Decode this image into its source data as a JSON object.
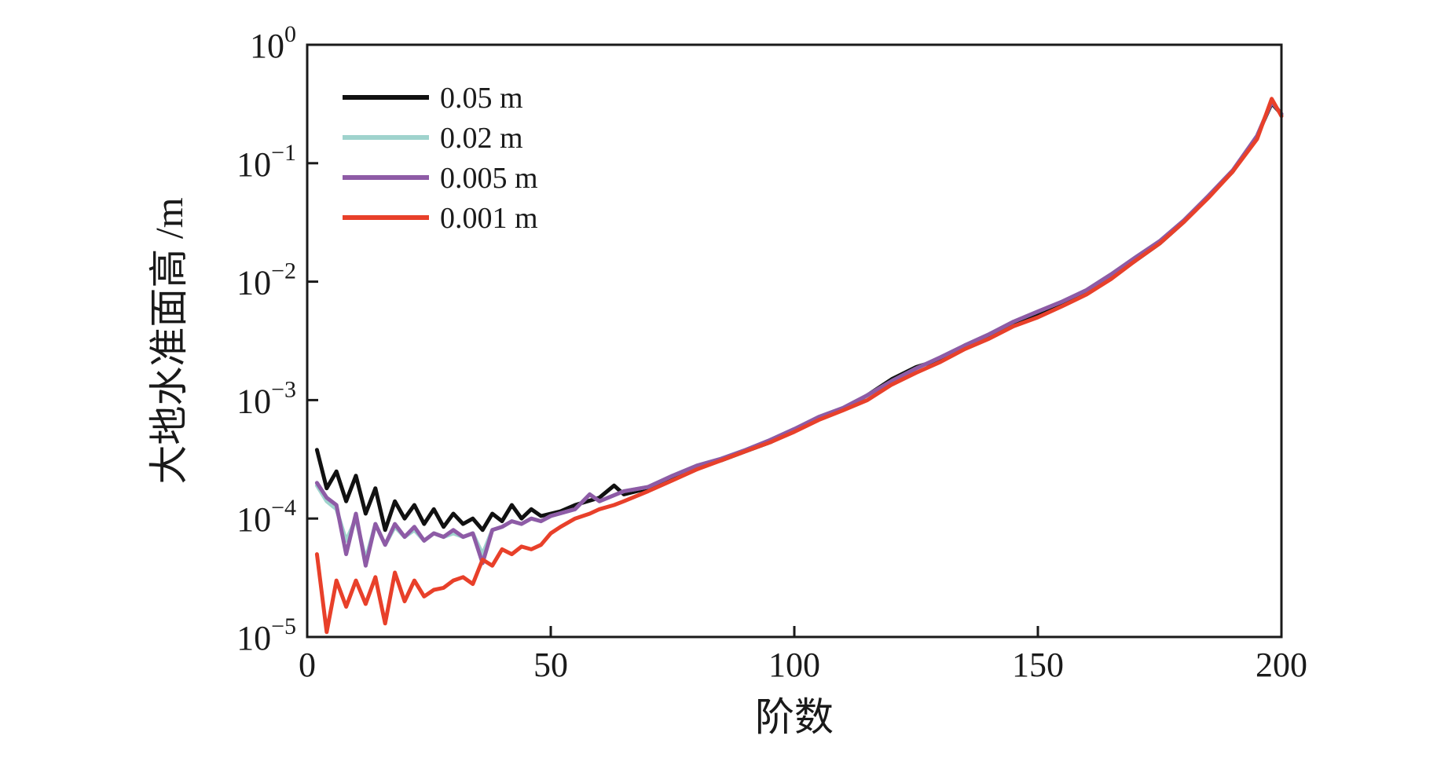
{
  "chart_data": {
    "type": "line",
    "title": "",
    "xlabel": "阶数",
    "ylabel": "大地水准面高 /m",
    "x_range": [
      0,
      200
    ],
    "y_range": [
      1e-05,
      1
    ],
    "y_scale": "log",
    "x_ticks": [
      0,
      50,
      100,
      150,
      200
    ],
    "y_ticks": [
      {
        "base": "10",
        "exp": "0",
        "value": 1
      },
      {
        "base": "10",
        "exp": "−1",
        "value": 0.1
      },
      {
        "base": "10",
        "exp": "−2",
        "value": 0.01
      },
      {
        "base": "10",
        "exp": "−3",
        "value": 0.001
      },
      {
        "base": "10",
        "exp": "−4",
        "value": 0.0001
      },
      {
        "base": "10",
        "exp": "−5",
        "value": 1e-05
      }
    ],
    "grid": false,
    "legend_position": "top-left",
    "series": [
      {
        "name": "0.05 m",
        "color": "#111111",
        "points": [
          [
            2,
            0.00038
          ],
          [
            4,
            0.00018
          ],
          [
            6,
            0.00025
          ],
          [
            8,
            0.00014
          ],
          [
            10,
            0.00023
          ],
          [
            12,
            0.00011
          ],
          [
            14,
            0.00018
          ],
          [
            16,
            8e-05
          ],
          [
            18,
            0.00014
          ],
          [
            20,
            0.0001
          ],
          [
            22,
            0.00013
          ],
          [
            24,
            9e-05
          ],
          [
            26,
            0.00012
          ],
          [
            28,
            8.5e-05
          ],
          [
            30,
            0.00011
          ],
          [
            32,
            9e-05
          ],
          [
            34,
            0.0001
          ],
          [
            36,
            8e-05
          ],
          [
            38,
            0.00011
          ],
          [
            40,
            9.5e-05
          ],
          [
            42,
            0.00013
          ],
          [
            44,
            0.0001
          ],
          [
            46,
            0.00012
          ],
          [
            48,
            0.000105
          ],
          [
            50,
            0.00011
          ],
          [
            52,
            0.000115
          ],
          [
            55,
            0.00013
          ],
          [
            60,
            0.00015
          ],
          [
            63,
            0.00019
          ],
          [
            65,
            0.00016
          ],
          [
            70,
            0.00018
          ],
          [
            75,
            0.00022
          ],
          [
            80,
            0.00027
          ],
          [
            85,
            0.00031
          ],
          [
            90,
            0.00037
          ],
          [
            95,
            0.00044
          ],
          [
            100,
            0.00055
          ],
          [
            105,
            0.0007
          ],
          [
            110,
            0.00084
          ],
          [
            115,
            0.0011
          ],
          [
            120,
            0.0015
          ],
          [
            125,
            0.0019
          ],
          [
            130,
            0.0022
          ],
          [
            135,
            0.0029
          ],
          [
            140,
            0.0035
          ],
          [
            145,
            0.0045
          ],
          [
            150,
            0.0053
          ],
          [
            155,
            0.0065
          ],
          [
            160,
            0.0082
          ],
          [
            165,
            0.011
          ],
          [
            170,
            0.015
          ],
          [
            175,
            0.021
          ],
          [
            180,
            0.032
          ],
          [
            185,
            0.052
          ],
          [
            190,
            0.085
          ],
          [
            195,
            0.17
          ],
          [
            198,
            0.32
          ],
          [
            200,
            0.26
          ]
        ]
      },
      {
        "name": "0.02 m",
        "color": "#9fd3cd",
        "points": [
          [
            2,
            0.00019
          ],
          [
            4,
            0.00014
          ],
          [
            6,
            0.00012
          ],
          [
            8,
            6.5e-05
          ],
          [
            10,
            0.0001
          ],
          [
            12,
            4.5e-05
          ],
          [
            14,
            9e-05
          ],
          [
            16,
            6e-05
          ],
          [
            18,
            8.5e-05
          ],
          [
            20,
            7e-05
          ],
          [
            22,
            8e-05
          ],
          [
            24,
            6.5e-05
          ],
          [
            26,
            7.5e-05
          ],
          [
            28,
            7e-05
          ],
          [
            30,
            7.5e-05
          ],
          [
            32,
            7e-05
          ],
          [
            34,
            7.5e-05
          ],
          [
            36,
            5e-05
          ],
          [
            38,
            8e-05
          ],
          [
            40,
            8.5e-05
          ],
          [
            42,
            9.5e-05
          ],
          [
            44,
            9e-05
          ],
          [
            46,
            0.0001
          ],
          [
            48,
            9.5e-05
          ],
          [
            50,
            0.000105
          ],
          [
            55,
            0.00012
          ],
          [
            58,
            0.00016
          ],
          [
            60,
            0.00014
          ],
          [
            65,
            0.00017
          ],
          [
            70,
            0.000185
          ],
          [
            75,
            0.00023
          ],
          [
            80,
            0.00028
          ],
          [
            85,
            0.00032
          ],
          [
            90,
            0.00038
          ],
          [
            95,
            0.00046
          ],
          [
            100,
            0.00057
          ],
          [
            105,
            0.00072
          ],
          [
            110,
            0.00086
          ],
          [
            115,
            0.0011
          ],
          [
            120,
            0.00145
          ],
          [
            125,
            0.00185
          ],
          [
            130,
            0.0023
          ],
          [
            135,
            0.0029
          ],
          [
            140,
            0.0036
          ],
          [
            145,
            0.0046
          ],
          [
            150,
            0.0056
          ],
          [
            155,
            0.0068
          ],
          [
            160,
            0.0085
          ],
          [
            165,
            0.0115
          ],
          [
            170,
            0.016
          ],
          [
            175,
            0.022
          ],
          [
            180,
            0.033
          ],
          [
            185,
            0.053
          ],
          [
            190,
            0.087
          ],
          [
            195,
            0.17
          ],
          [
            198,
            0.33
          ],
          [
            200,
            0.26
          ]
        ]
      },
      {
        "name": "0.005 m",
        "color": "#8e5ba6",
        "points": [
          [
            2,
            0.0002
          ],
          [
            4,
            0.00015
          ],
          [
            6,
            0.00013
          ],
          [
            8,
            5e-05
          ],
          [
            10,
            0.00011
          ],
          [
            12,
            4e-05
          ],
          [
            14,
            9e-05
          ],
          [
            16,
            6e-05
          ],
          [
            18,
            9e-05
          ],
          [
            20,
            7e-05
          ],
          [
            22,
            8.5e-05
          ],
          [
            24,
            6.5e-05
          ],
          [
            26,
            7.5e-05
          ],
          [
            28,
            7e-05
          ],
          [
            30,
            8e-05
          ],
          [
            32,
            7e-05
          ],
          [
            34,
            7.5e-05
          ],
          [
            36,
            4.2e-05
          ],
          [
            38,
            8e-05
          ],
          [
            40,
            8.5e-05
          ],
          [
            42,
            9.5e-05
          ],
          [
            44,
            9e-05
          ],
          [
            46,
            0.0001
          ],
          [
            48,
            9.5e-05
          ],
          [
            50,
            0.000105
          ],
          [
            55,
            0.00012
          ],
          [
            58,
            0.00016
          ],
          [
            60,
            0.00014
          ],
          [
            65,
            0.00017
          ],
          [
            70,
            0.000185
          ],
          [
            75,
            0.00023
          ],
          [
            80,
            0.00028
          ],
          [
            85,
            0.00032
          ],
          [
            90,
            0.00038
          ],
          [
            95,
            0.00046
          ],
          [
            100,
            0.00057
          ],
          [
            105,
            0.00072
          ],
          [
            110,
            0.00086
          ],
          [
            115,
            0.0011
          ],
          [
            120,
            0.00145
          ],
          [
            125,
            0.00185
          ],
          [
            130,
            0.0023
          ],
          [
            135,
            0.0029
          ],
          [
            140,
            0.0036
          ],
          [
            145,
            0.0046
          ],
          [
            150,
            0.0056
          ],
          [
            155,
            0.0068
          ],
          [
            160,
            0.0085
          ],
          [
            165,
            0.0115
          ],
          [
            170,
            0.016
          ],
          [
            175,
            0.022
          ],
          [
            180,
            0.033
          ],
          [
            185,
            0.053
          ],
          [
            190,
            0.087
          ],
          [
            195,
            0.17
          ],
          [
            198,
            0.33
          ],
          [
            200,
            0.26
          ]
        ]
      },
      {
        "name": "0.001 m",
        "color": "#e8402a",
        "points": [
          [
            2,
            5e-05
          ],
          [
            4,
            1.1e-05
          ],
          [
            6,
            3e-05
          ],
          [
            8,
            1.8e-05
          ],
          [
            10,
            3e-05
          ],
          [
            12,
            1.9e-05
          ],
          [
            14,
            3.2e-05
          ],
          [
            16,
            1.3e-05
          ],
          [
            18,
            3.5e-05
          ],
          [
            20,
            2e-05
          ],
          [
            22,
            3e-05
          ],
          [
            24,
            2.2e-05
          ],
          [
            26,
            2.5e-05
          ],
          [
            28,
            2.6e-05
          ],
          [
            30,
            3e-05
          ],
          [
            32,
            3.2e-05
          ],
          [
            34,
            2.8e-05
          ],
          [
            36,
            4.5e-05
          ],
          [
            38,
            4e-05
          ],
          [
            40,
            5.5e-05
          ],
          [
            42,
            5e-05
          ],
          [
            44,
            5.8e-05
          ],
          [
            46,
            5.5e-05
          ],
          [
            48,
            6e-05
          ],
          [
            50,
            7.5e-05
          ],
          [
            52,
            8.5e-05
          ],
          [
            55,
            0.0001
          ],
          [
            58,
            0.00011
          ],
          [
            60,
            0.00012
          ],
          [
            63,
            0.00013
          ],
          [
            65,
            0.00014
          ],
          [
            70,
            0.00017
          ],
          [
            75,
            0.00021
          ],
          [
            80,
            0.00026
          ],
          [
            85,
            0.00031
          ],
          [
            90,
            0.00037
          ],
          [
            95,
            0.00044
          ],
          [
            100,
            0.00054
          ],
          [
            105,
            0.00068
          ],
          [
            110,
            0.00082
          ],
          [
            115,
            0.001
          ],
          [
            120,
            0.00135
          ],
          [
            125,
            0.0017
          ],
          [
            130,
            0.0021
          ],
          [
            135,
            0.0027
          ],
          [
            140,
            0.0033
          ],
          [
            145,
            0.0042
          ],
          [
            150,
            0.005
          ],
          [
            155,
            0.0062
          ],
          [
            160,
            0.0078
          ],
          [
            165,
            0.0105
          ],
          [
            170,
            0.015
          ],
          [
            175,
            0.021
          ],
          [
            180,
            0.032
          ],
          [
            185,
            0.051
          ],
          [
            190,
            0.085
          ],
          [
            195,
            0.16
          ],
          [
            198,
            0.35
          ],
          [
            200,
            0.25
          ]
        ]
      }
    ]
  }
}
